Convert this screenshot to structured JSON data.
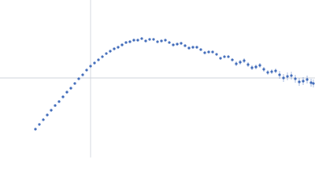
{
  "chart_data": {
    "type": "scatter",
    "color": "#3a66b7",
    "xlim": [
      0,
      400
    ],
    "ylim": [
      0,
      200
    ],
    "x": [
      45,
      50,
      55,
      60,
      65,
      70,
      75,
      80,
      85,
      90,
      95,
      100,
      105,
      110,
      115,
      120,
      125,
      130,
      135,
      140,
      145,
      150,
      155,
      160,
      165,
      170,
      175,
      180,
      185,
      190,
      195,
      200,
      205,
      210,
      215,
      220,
      225,
      230,
      235,
      240,
      245,
      250,
      255,
      260,
      265,
      270,
      275,
      280,
      285,
      290,
      295,
      300,
      305,
      310,
      315,
      320,
      325,
      330,
      335,
      340,
      345,
      350,
      355,
      360,
      365,
      370,
      375,
      380,
      385,
      390,
      395,
      398
    ],
    "values": [
      36,
      42,
      48,
      54,
      60,
      66,
      71,
      77,
      83,
      88,
      94,
      100,
      105,
      111,
      116,
      120,
      124,
      128,
      132,
      135,
      138,
      140,
      143,
      146,
      147,
      149,
      149,
      151,
      148,
      150,
      150,
      147,
      148,
      149,
      146,
      143,
      144,
      145,
      142,
      139,
      140,
      140,
      137,
      133,
      134,
      134,
      131,
      126,
      128,
      128,
      124,
      119,
      121,
      123,
      118,
      114,
      115,
      117,
      112,
      108,
      109,
      110,
      105,
      101,
      103,
      104,
      100,
      96,
      97,
      99,
      95,
      94
    ],
    "errors": [
      0.5,
      0.5,
      0.5,
      0.5,
      0.5,
      0.5,
      0.5,
      0.5,
      0.5,
      0.5,
      0.5,
      0.5,
      0.5,
      0.5,
      0.5,
      0.5,
      0.5,
      0.5,
      0.5,
      0.5,
      0.5,
      0.5,
      0.5,
      0.5,
      0.5,
      0.5,
      0.5,
      0.5,
      0.5,
      0.5,
      0.5,
      1.5,
      1.5,
      1.5,
      1.5,
      1.5,
      1.5,
      1.5,
      1.5,
      1.5,
      1.5,
      1.5,
      1.5,
      1.5,
      1.5,
      1.5,
      1.5,
      1.5,
      1.5,
      1.5,
      1.5,
      3,
      3,
      3,
      3,
      3,
      3,
      3,
      3,
      3,
      3,
      3,
      5,
      5,
      5,
      5,
      5,
      5,
      5,
      5,
      5,
      5
    ]
  }
}
